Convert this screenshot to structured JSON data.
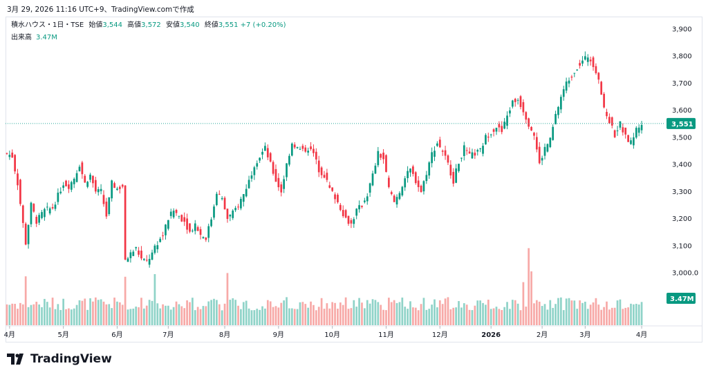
{
  "header": {
    "timestamp": "3月 29, 2026 11:16 UTC+9、TradingView.comで作成"
  },
  "legend": {
    "symbol": "積水ハウス・1日・TSE",
    "open_label": "始値",
    "open_value": "3,544",
    "high_label": "高値",
    "high_value": "3,572",
    "low_label": "安値",
    "low_value": "3,540",
    "close_label": "終値",
    "close_value": "3,551",
    "change": "+7 (+0.20%)",
    "volume_label": "出来高",
    "volume_value": "3.47M"
  },
  "price_tag": "3,551",
  "volume_tag": "3.47M",
  "colors": {
    "up": "#089981",
    "down": "#f23645",
    "up_vol": "#8fd3c8",
    "down_vol": "#f7a9a7"
  },
  "brand": {
    "name": "TradingView",
    "logo_icon": "tradingview-logo-icon"
  },
  "chart_data": {
    "type": "candlestick",
    "ylim": [
      2880,
      3930
    ],
    "yticks": [
      "3,900",
      "3,800",
      "3,700",
      "3,600",
      "3,500",
      "3,400",
      "3,300",
      "3,200",
      "3,100",
      "3,000.0"
    ],
    "ytick_values": [
      3900,
      3800,
      3700,
      3600,
      3500,
      3400,
      3300,
      3200,
      3100,
      3000
    ],
    "xticks": [
      "4月",
      "5月",
      "6月",
      "7月",
      "8月",
      "9月",
      "10月",
      "11月",
      "12月",
      "2026",
      "2月",
      "3月",
      "4月"
    ],
    "xtick_positions": [
      1,
      21,
      41,
      60,
      81,
      101,
      121,
      141,
      161,
      180,
      199,
      215,
      236
    ],
    "close_anchors": [
      [
        0,
        3440
      ],
      [
        2,
        3430
      ],
      [
        4,
        3330
      ],
      [
        6,
        3180
      ],
      [
        7,
        3110
      ],
      [
        9,
        3250
      ],
      [
        11,
        3190
      ],
      [
        14,
        3230
      ],
      [
        17,
        3240
      ],
      [
        21,
        3330
      ],
      [
        23,
        3320
      ],
      [
        25,
        3350
      ],
      [
        27,
        3400
      ],
      [
        29,
        3330
      ],
      [
        31,
        3360
      ],
      [
        33,
        3300
      ],
      [
        35,
        3300
      ],
      [
        37,
        3210
      ],
      [
        39,
        3330
      ],
      [
        41,
        3310
      ],
      [
        43,
        3320
      ],
      [
        44,
        3040
      ],
      [
        46,
        3070
      ],
      [
        48,
        3090
      ],
      [
        50,
        3050
      ],
      [
        52,
        3040
      ],
      [
        54,
        3070
      ],
      [
        56,
        3110
      ],
      [
        58,
        3140
      ],
      [
        60,
        3200
      ],
      [
        62,
        3230
      ],
      [
        64,
        3210
      ],
      [
        66,
        3190
      ],
      [
        68,
        3150
      ],
      [
        70,
        3180
      ],
      [
        72,
        3140
      ],
      [
        74,
        3130
      ],
      [
        76,
        3200
      ],
      [
        78,
        3300
      ],
      [
        80,
        3270
      ],
      [
        82,
        3200
      ],
      [
        84,
        3220
      ],
      [
        86,
        3250
      ],
      [
        88,
        3290
      ],
      [
        90,
        3340
      ],
      [
        92,
        3400
      ],
      [
        94,
        3430
      ],
      [
        96,
        3460
      ],
      [
        98,
        3400
      ],
      [
        100,
        3340
      ],
      [
        102,
        3300
      ],
      [
        104,
        3400
      ],
      [
        106,
        3480
      ],
      [
        108,
        3460
      ],
      [
        110,
        3450
      ],
      [
        112,
        3460
      ],
      [
        114,
        3440
      ],
      [
        116,
        3380
      ],
      [
        118,
        3360
      ],
      [
        120,
        3310
      ],
      [
        122,
        3280
      ],
      [
        124,
        3240
      ],
      [
        126,
        3200
      ],
      [
        128,
        3180
      ],
      [
        130,
        3230
      ],
      [
        132,
        3250
      ],
      [
        134,
        3290
      ],
      [
        136,
        3360
      ],
      [
        138,
        3440
      ],
      [
        140,
        3420
      ],
      [
        142,
        3310
      ],
      [
        144,
        3260
      ],
      [
        146,
        3300
      ],
      [
        148,
        3350
      ],
      [
        150,
        3380
      ],
      [
        152,
        3340
      ],
      [
        154,
        3300
      ],
      [
        156,
        3370
      ],
      [
        158,
        3440
      ],
      [
        160,
        3480
      ],
      [
        162,
        3450
      ],
      [
        164,
        3400
      ],
      [
        166,
        3340
      ],
      [
        168,
        3410
      ],
      [
        170,
        3460
      ],
      [
        172,
        3430
      ],
      [
        174,
        3440
      ],
      [
        176,
        3450
      ],
      [
        178,
        3500
      ],
      [
        180,
        3520
      ],
      [
        182,
        3540
      ],
      [
        184,
        3520
      ],
      [
        186,
        3580
      ],
      [
        188,
        3630
      ],
      [
        190,
        3640
      ],
      [
        192,
        3600
      ],
      [
        194,
        3550
      ],
      [
        196,
        3510
      ],
      [
        198,
        3400
      ],
      [
        200,
        3460
      ],
      [
        202,
        3490
      ],
      [
        204,
        3580
      ],
      [
        206,
        3650
      ],
      [
        208,
        3700
      ],
      [
        210,
        3730
      ],
      [
        212,
        3760
      ],
      [
        214,
        3780
      ],
      [
        216,
        3800
      ],
      [
        218,
        3770
      ],
      [
        220,
        3720
      ],
      [
        222,
        3600
      ],
      [
        224,
        3560
      ],
      [
        226,
        3510
      ],
      [
        228,
        3550
      ],
      [
        230,
        3500
      ],
      [
        232,
        3480
      ],
      [
        234,
        3530
      ],
      [
        236,
        3551
      ]
    ],
    "volume_range": [
      0,
      8
    ]
  }
}
